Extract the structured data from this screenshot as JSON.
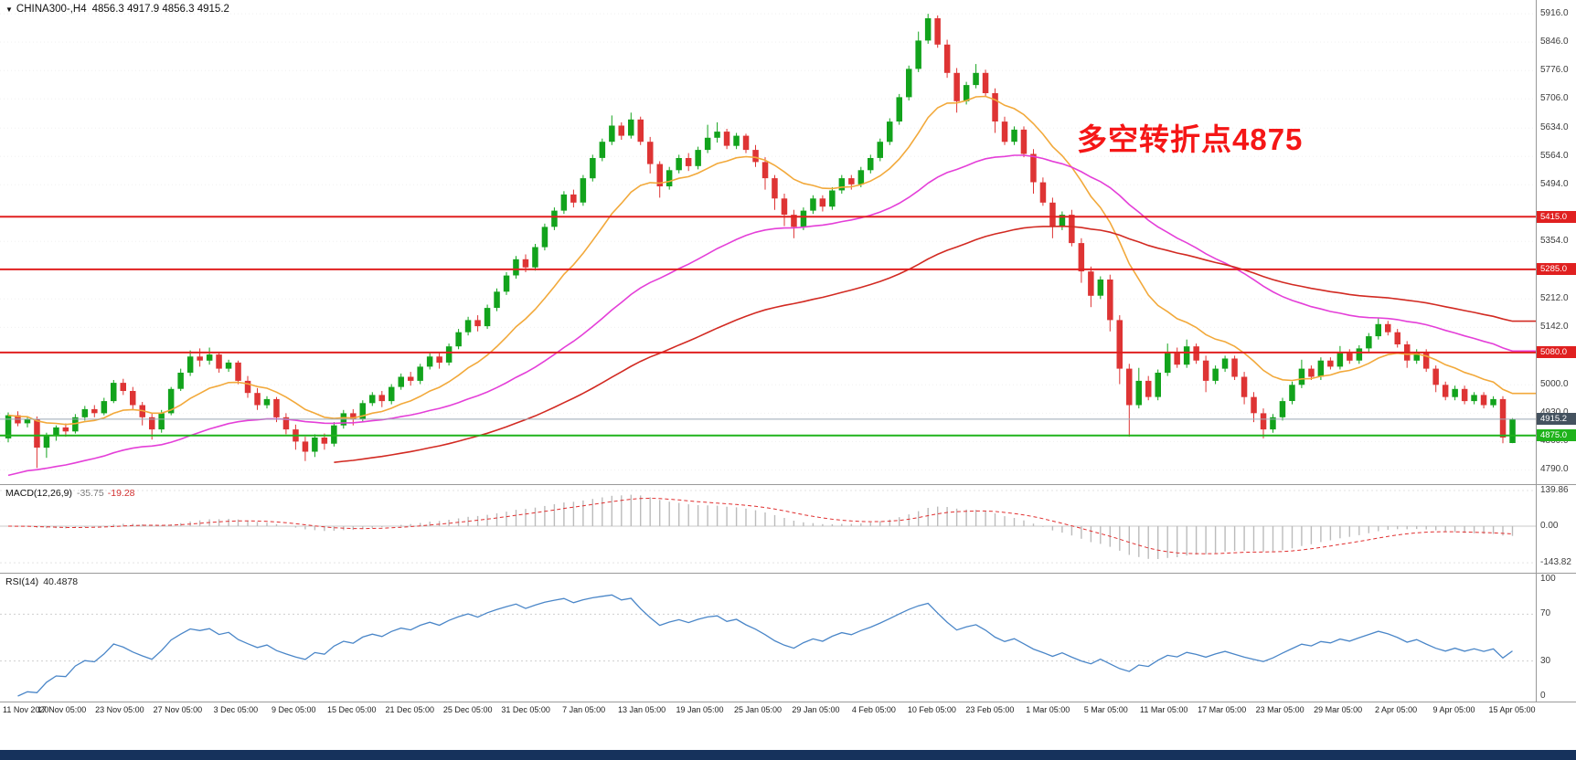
{
  "header": {
    "marker": "▼",
    "title": "CHINA300-,H4",
    "ohlc": "4856.3 4917.9 4856.3 4915.2"
  },
  "annotation": {
    "text": "多空转折点4875",
    "color": "#f51616"
  },
  "chart_data": {
    "type": "candlestick",
    "symbol": "CHINA300-",
    "timeframe": "H4",
    "y_range": [
      4755,
      5950
    ],
    "colors": {
      "up": "#12a31c",
      "down": "#de3434"
    },
    "price_axis_ticks": [
      "5916.0",
      "5846.0",
      "5776.0",
      "5706.0",
      "5634.0",
      "5564.0",
      "5494.0",
      "5354.0",
      "5212.0",
      "5142.0",
      "5000.0",
      "4930.0",
      "4860.0",
      "4790.0"
    ],
    "x_axis_labels": [
      "11 Nov 2020",
      "17 Nov 05:00",
      "23 Nov 05:00",
      "27 Nov 05:00",
      "3 Dec 05:00",
      "9 Dec 05:00",
      "15 Dec 05:00",
      "21 Dec 05:00",
      "25 Dec 05:00",
      "31 Dec 05:00",
      "7 Jan 05:00",
      "13 Jan 05:00",
      "19 Jan 05:00",
      "25 Jan 05:00",
      "29 Jan 05:00",
      "4 Feb 05:00",
      "10 Feb 05:00",
      "23 Feb 05:00",
      "1 Mar 05:00",
      "5 Mar 05:00",
      "11 Mar 05:00",
      "17 Mar 05:00",
      "23 Mar 05:00",
      "29 Mar 05:00",
      "2 Apr 05:00",
      "9 Apr 05:00",
      "15 Apr 05:00"
    ],
    "overlays": {
      "moving_averages": [
        {
          "name": "ma-fast",
          "color": "#f2a93b",
          "period": 14
        },
        {
          "name": "ma-mid",
          "color": "#e43fd8",
          "period": 45,
          "seed": 4770
        },
        {
          "name": "ma-slow",
          "color": "#d22a22",
          "period": 90,
          "seed": 4650,
          "draw_from": 34
        }
      ],
      "horizontal_lines": [
        {
          "label": "5415.0",
          "price": 5415.0,
          "color": "#e02020",
          "width": 2
        },
        {
          "label": "5285.0",
          "price": 5285.0,
          "color": "#e02020",
          "width": 2
        },
        {
          "label": "5080.0",
          "price": 5080.0,
          "color": "#e02020",
          "width": 2
        },
        {
          "label": "4875.0",
          "price": 4875.0,
          "color": "#1fb31b",
          "width": 2
        }
      ],
      "current_price": {
        "label": "4915.2",
        "value": 4915.2,
        "line_color": "#9aa8b4",
        "tag_color": "#44525f"
      }
    },
    "indicators": [
      {
        "name": "macd",
        "label": "MACD(12,26,9)",
        "main_value": "-35.75",
        "signal_value": "-19.28",
        "params": [
          12,
          26,
          9
        ],
        "axis_ticks": [
          "139.86",
          "0.00",
          "-143.82"
        ],
        "histogram_color": "#bbbbbb",
        "signal_color": "#e03030"
      },
      {
        "name": "rsi",
        "label": "RSI(14)",
        "value": "40.4878",
        "period": 14,
        "axis_ticks": [
          "100",
          "70",
          "30",
          "0"
        ],
        "levels": [
          70,
          30
        ],
        "color": "#4a86c8"
      }
    ],
    "candles_ohlc": [
      [
        4868,
        4932,
        4858,
        4925
      ],
      [
        4925,
        4935,
        4898,
        4905
      ],
      [
        4905,
        4922,
        4895,
        4915
      ],
      [
        4915,
        4922,
        4795,
        4845
      ],
      [
        4845,
        4882,
        4820,
        4875
      ],
      [
        4875,
        4900,
        4862,
        4895
      ],
      [
        4895,
        4905,
        4872,
        4885
      ],
      [
        4885,
        4928,
        4880,
        4920
      ],
      [
        4920,
        4948,
        4912,
        4940
      ],
      [
        4940,
        4950,
        4920,
        4930
      ],
      [
        4930,
        4968,
        4925,
        4960
      ],
      [
        4960,
        5012,
        4955,
        5005
      ],
      [
        5005,
        5015,
        4975,
        4985
      ],
      [
        4985,
        4995,
        4940,
        4950
      ],
      [
        4950,
        4958,
        4900,
        4920
      ],
      [
        4920,
        4932,
        4865,
        4890
      ],
      [
        4890,
        4938,
        4882,
        4930
      ],
      [
        4930,
        4995,
        4925,
        4990
      ],
      [
        4990,
        5040,
        4985,
        5030
      ],
      [
        5030,
        5085,
        5022,
        5070
      ],
      [
        5070,
        5090,
        5045,
        5060
      ],
      [
        5060,
        5092,
        5050,
        5075
      ],
      [
        5075,
        5082,
        5030,
        5040
      ],
      [
        5040,
        5062,
        5032,
        5055
      ],
      [
        5055,
        5060,
        5002,
        5010
      ],
      [
        5010,
        5022,
        4968,
        4980
      ],
      [
        4980,
        4992,
        4938,
        4950
      ],
      [
        4950,
        4972,
        4942,
        4965
      ],
      [
        4965,
        4970,
        4908,
        4920
      ],
      [
        4920,
        4930,
        4878,
        4890
      ],
      [
        4890,
        4902,
        4840,
        4860
      ],
      [
        4860,
        4872,
        4812,
        4835
      ],
      [
        4835,
        4878,
        4822,
        4870
      ],
      [
        4870,
        4880,
        4840,
        4855
      ],
      [
        4855,
        4908,
        4848,
        4900
      ],
      [
        4900,
        4938,
        4892,
        4930
      ],
      [
        4930,
        4940,
        4900,
        4915
      ],
      [
        4915,
        4962,
        4908,
        4955
      ],
      [
        4955,
        4982,
        4948,
        4975
      ],
      [
        4975,
        4985,
        4945,
        4960
      ],
      [
        4960,
        5002,
        4952,
        4995
      ],
      [
        4995,
        5028,
        4988,
        5020
      ],
      [
        5020,
        5032,
        4998,
        5010
      ],
      [
        5010,
        5052,
        5002,
        5045
      ],
      [
        5045,
        5078,
        5038,
        5070
      ],
      [
        5070,
        5082,
        5040,
        5055
      ],
      [
        5055,
        5102,
        5048,
        5095
      ],
      [
        5095,
        5138,
        5088,
        5130
      ],
      [
        5130,
        5168,
        5122,
        5160
      ],
      [
        5160,
        5172,
        5132,
        5145
      ],
      [
        5145,
        5198,
        5138,
        5190
      ],
      [
        5190,
        5238,
        5182,
        5230
      ],
      [
        5230,
        5278,
        5222,
        5270
      ],
      [
        5270,
        5318,
        5262,
        5310
      ],
      [
        5310,
        5322,
        5278,
        5290
      ],
      [
        5290,
        5348,
        5282,
        5340
      ],
      [
        5340,
        5398,
        5332,
        5390
      ],
      [
        5390,
        5438,
        5382,
        5430
      ],
      [
        5430,
        5478,
        5422,
        5470
      ],
      [
        5470,
        5482,
        5438,
        5450
      ],
      [
        5450,
        5518,
        5442,
        5510
      ],
      [
        5510,
        5568,
        5502,
        5560
      ],
      [
        5560,
        5608,
        5552,
        5600
      ],
      [
        5600,
        5665,
        5592,
        5640
      ],
      [
        5640,
        5648,
        5605,
        5615
      ],
      [
        5615,
        5672,
        5608,
        5655
      ],
      [
        5655,
        5662,
        5592,
        5600
      ],
      [
        5600,
        5612,
        5522,
        5545
      ],
      [
        5545,
        5552,
        5462,
        5490
      ],
      [
        5490,
        5538,
        5482,
        5530
      ],
      [
        5530,
        5568,
        5522,
        5560
      ],
      [
        5560,
        5572,
        5528,
        5540
      ],
      [
        5540,
        5588,
        5532,
        5580
      ],
      [
        5580,
        5642,
        5572,
        5610
      ],
      [
        5610,
        5648,
        5598,
        5625
      ],
      [
        5625,
        5632,
        5582,
        5590
      ],
      [
        5590,
        5622,
        5582,
        5615
      ],
      [
        5615,
        5620,
        5572,
        5580
      ],
      [
        5580,
        5592,
        5538,
        5550
      ],
      [
        5550,
        5562,
        5482,
        5510
      ],
      [
        5510,
        5518,
        5432,
        5460
      ],
      [
        5460,
        5472,
        5392,
        5420
      ],
      [
        5420,
        5432,
        5362,
        5390
      ],
      [
        5390,
        5438,
        5382,
        5430
      ],
      [
        5430,
        5468,
        5422,
        5460
      ],
      [
        5460,
        5468,
        5428,
        5440
      ],
      [
        5440,
        5488,
        5432,
        5480
      ],
      [
        5480,
        5518,
        5472,
        5510
      ],
      [
        5510,
        5518,
        5482,
        5495
      ],
      [
        5495,
        5538,
        5488,
        5530
      ],
      [
        5530,
        5568,
        5522,
        5560
      ],
      [
        5560,
        5608,
        5552,
        5600
      ],
      [
        5600,
        5658,
        5592,
        5650
      ],
      [
        5650,
        5718,
        5642,
        5710
      ],
      [
        5710,
        5788,
        5702,
        5780
      ],
      [
        5780,
        5872,
        5772,
        5850
      ],
      [
        5850,
        5916,
        5842,
        5905
      ],
      [
        5905,
        5912,
        5832,
        5840
      ],
      [
        5840,
        5852,
        5758,
        5770
      ],
      [
        5770,
        5782,
        5672,
        5700
      ],
      [
        5700,
        5748,
        5692,
        5740
      ],
      [
        5740,
        5792,
        5732,
        5770
      ],
      [
        5770,
        5778,
        5712,
        5720
      ],
      [
        5720,
        5732,
        5622,
        5650
      ],
      [
        5650,
        5662,
        5592,
        5600
      ],
      [
        5600,
        5638,
        5592,
        5630
      ],
      [
        5630,
        5638,
        5562,
        5570
      ],
      [
        5570,
        5582,
        5472,
        5500
      ],
      [
        5500,
        5512,
        5442,
        5450
      ],
      [
        5450,
        5462,
        5362,
        5390
      ],
      [
        5390,
        5428,
        5382,
        5420
      ],
      [
        5420,
        5432,
        5342,
        5350
      ],
      [
        5350,
        5362,
        5252,
        5280
      ],
      [
        5280,
        5292,
        5192,
        5220
      ],
      [
        5220,
        5268,
        5212,
        5260
      ],
      [
        5260,
        5272,
        5132,
        5160
      ],
      [
        5160,
        5172,
        5002,
        5040
      ],
      [
        5040,
        5052,
        4872,
        4950
      ],
      [
        4950,
        5042,
        4942,
        5010
      ],
      [
        5010,
        5022,
        4962,
        4970
      ],
      [
        4970,
        5038,
        4962,
        5030
      ],
      [
        5030,
        5102,
        5022,
        5080
      ],
      [
        5080,
        5092,
        5042,
        5050
      ],
      [
        5050,
        5112,
        5042,
        5095
      ],
      [
        5095,
        5102,
        5052,
        5060
      ],
      [
        5060,
        5072,
        4982,
        5010
      ],
      [
        5010,
        5048,
        5002,
        5040
      ],
      [
        5040,
        5072,
        5032,
        5065
      ],
      [
        5065,
        5072,
        5012,
        5020
      ],
      [
        5020,
        5032,
        4952,
        4970
      ],
      [
        4970,
        4982,
        4908,
        4930
      ],
      [
        4930,
        4942,
        4868,
        4890
      ],
      [
        4890,
        4928,
        4882,
        4920
      ],
      [
        4920,
        4968,
        4912,
        4960
      ],
      [
        4960,
        5008,
        4952,
        5000
      ],
      [
        5000,
        5062,
        4992,
        5040
      ],
      [
        5040,
        5048,
        5012,
        5020
      ],
      [
        5020,
        5068,
        5012,
        5060
      ],
      [
        5060,
        5068,
        5038,
        5045
      ],
      [
        5045,
        5096,
        5038,
        5080
      ],
      [
        5080,
        5088,
        5052,
        5060
      ],
      [
        5060,
        5098,
        5052,
        5090
      ],
      [
        5090,
        5128,
        5082,
        5120
      ],
      [
        5120,
        5165,
        5112,
        5150
      ],
      [
        5150,
        5158,
        5122,
        5130
      ],
      [
        5130,
        5138,
        5092,
        5100
      ],
      [
        5100,
        5108,
        5042,
        5060
      ],
      [
        5060,
        5088,
        5052,
        5080
      ],
      [
        5080,
        5088,
        5032,
        5040
      ],
      [
        5040,
        5048,
        4982,
        5000
      ],
      [
        5000,
        5008,
        4962,
        4970
      ],
      [
        4970,
        4998,
        4962,
        4990
      ],
      [
        4990,
        4998,
        4952,
        4960
      ],
      [
        4960,
        4982,
        4952,
        4975
      ],
      [
        4975,
        4982,
        4942,
        4950
      ],
      [
        4950,
        4972,
        4944,
        4965
      ],
      [
        4965,
        4972,
        4856,
        4870
      ],
      [
        4856.3,
        4917.9,
        4856.3,
        4915.2
      ]
    ]
  }
}
